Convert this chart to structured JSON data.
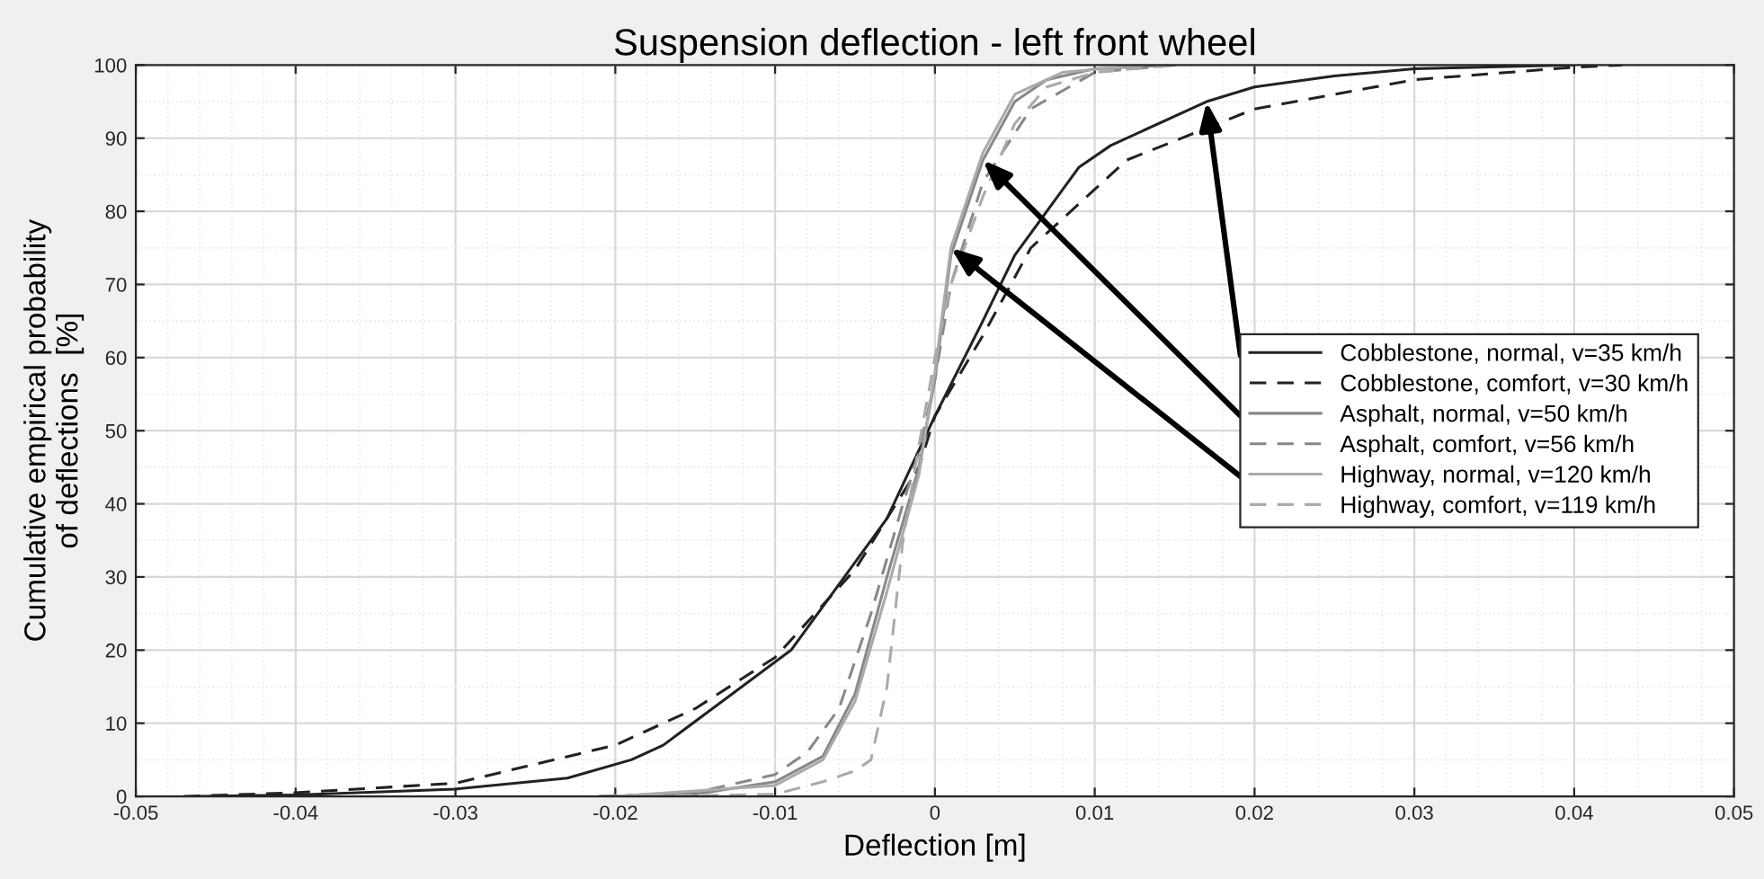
{
  "chart_data": {
    "type": "line",
    "title": "Suspension deflection - left front wheel",
    "xlabel": "Deflection [m]",
    "ylabel": "Cumulative empirical probability\nof deflections  [%]",
    "xlim": [
      -0.05,
      0.05
    ],
    "xticks": [
      -0.05,
      -0.04,
      -0.03,
      -0.02,
      -0.01,
      0,
      0.01,
      0.02,
      0.03,
      0.04,
      0.05
    ],
    "ylim": [
      0,
      100
    ],
    "yticks": [
      0,
      10,
      20,
      30,
      40,
      50,
      60,
      70,
      80,
      90,
      100
    ],
    "grid": true,
    "legend": "right",
    "marker": "none",
    "series": [
      {
        "name": "Cobblestone, normal, v=35 km/h",
        "color": "#222222",
        "line_style": "solid",
        "x": [
          -0.046,
          -0.04,
          -0.03,
          -0.023,
          -0.019,
          -0.017,
          -0.009,
          -0.003,
          0,
          0.003,
          0.005,
          0.009,
          0.011,
          0.017,
          0.02,
          0.025,
          0.03,
          0.04
        ],
        "values": [
          0,
          0.2,
          1,
          2.5,
          5,
          7,
          20,
          38,
          52,
          65,
          74,
          86,
          89,
          95,
          97,
          98.5,
          99.5,
          100
        ]
      },
      {
        "name": "Cobblestone, comfort, v=30 km/h",
        "color": "#222222",
        "line_style": "dashed",
        "x": [
          -0.047,
          -0.04,
          -0.03,
          -0.02,
          -0.015,
          -0.01,
          -0.005,
          -0.001,
          0,
          0.003,
          0.006,
          0.01,
          0.012,
          0.02,
          0.03,
          0.04,
          0.043
        ],
        "values": [
          0,
          0.5,
          1.8,
          7,
          12,
          19,
          31,
          45,
          52,
          63,
          75,
          83,
          87,
          94,
          98,
          99.7,
          100
        ]
      },
      {
        "name": "Asphalt, normal, v=50 km/h",
        "color": "#888888",
        "line_style": "solid",
        "x": [
          -0.021,
          -0.015,
          -0.01,
          -0.007,
          -0.005,
          -0.003,
          -0.001,
          0,
          0.001,
          0.003,
          0.005,
          0.007,
          0.01,
          0.015
        ],
        "values": [
          0,
          0.3,
          2,
          5.5,
          14,
          30,
          45,
          57,
          74,
          87,
          95,
          98,
          99.5,
          100
        ]
      },
      {
        "name": "Asphalt, comfort, v=56 km/h",
        "color": "#888888",
        "line_style": "dashed",
        "x": [
          -0.021,
          -0.015,
          -0.01,
          -0.008,
          -0.006,
          -0.004,
          -0.002,
          -0.001,
          0,
          0.001,
          0.003,
          0.006,
          0.01,
          0.015
        ],
        "values": [
          0,
          0.5,
          3,
          6,
          12,
          25,
          40,
          47,
          57,
          70,
          84,
          94,
          99,
          100
        ]
      },
      {
        "name": "Highway, normal, v=120 km/h",
        "color": "#aaaaaa",
        "line_style": "solid",
        "x": [
          -0.02,
          -0.01,
          -0.007,
          -0.005,
          -0.003,
          -0.001,
          0,
          0.001,
          0.003,
          0.005,
          0.008,
          0.013
        ],
        "values": [
          0,
          1.5,
          5,
          13,
          28,
          44,
          58,
          75,
          88,
          96,
          99,
          100
        ]
      },
      {
        "name": "Highway, comfort, v=119 km/h",
        "color": "#aaaaaa",
        "line_style": "dashed",
        "x": [
          -0.018,
          -0.01,
          -0.007,
          -0.005,
          -0.004,
          -0.003,
          -0.002,
          -0.001,
          0,
          0.001,
          0.003,
          0.005,
          0.007,
          0.01,
          0.015
        ],
        "values": [
          0,
          0.3,
          2,
          3.5,
          5,
          15,
          35,
          48,
          60,
          70,
          82,
          92,
          97,
          99,
          100
        ]
      }
    ]
  }
}
